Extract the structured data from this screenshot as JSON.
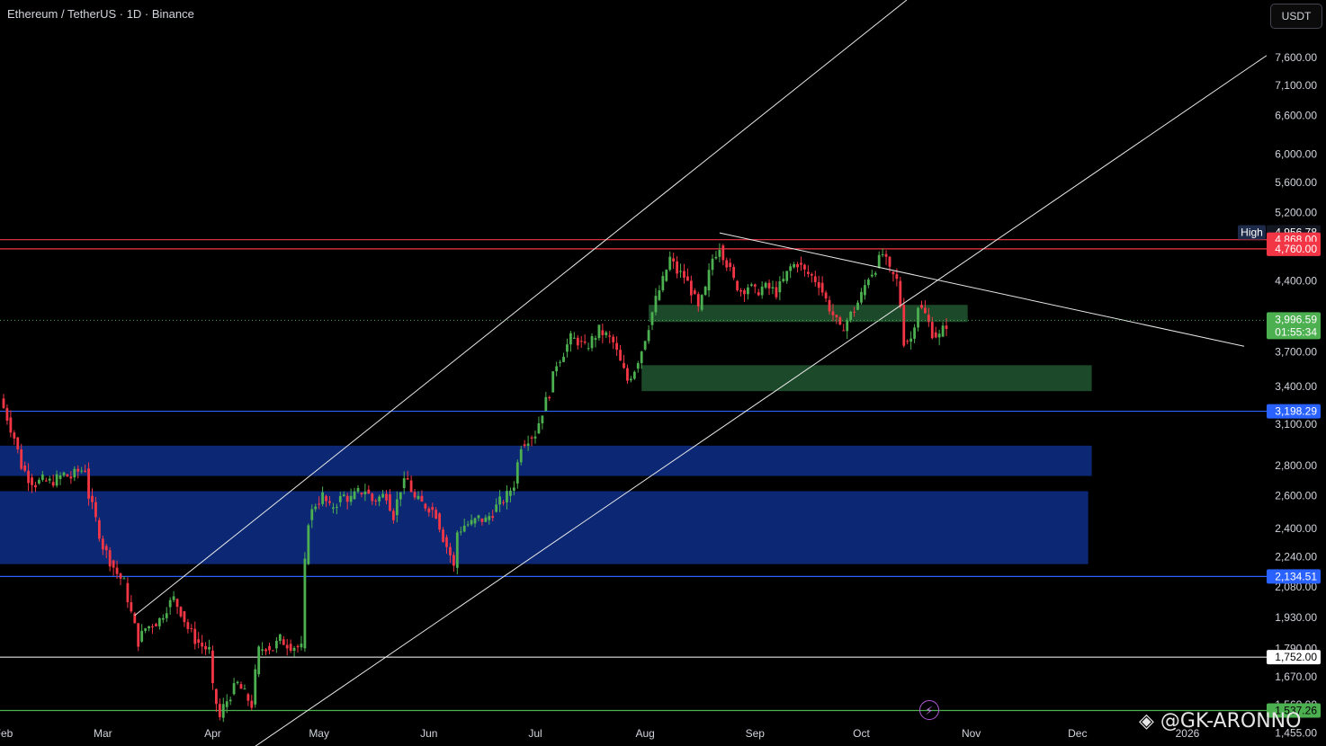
{
  "header": {
    "title": "Ethereum / TetherUS · 1D · Binance",
    "currency_button": "USDT"
  },
  "watermark": "@GK-ARONNO",
  "colors": {
    "up": "#4caf50",
    "down": "#f23645",
    "resistance": "#f23645",
    "support_blue": "#2962ff",
    "zone_green": "#1e4d2b",
    "zone_blue": "#0d2a7a",
    "trendline": "#e8e8e8"
  },
  "chart_data": {
    "type": "candlestick",
    "scale": "log",
    "y_ticks": [
      7600,
      7100,
      6600,
      6000,
      5600,
      5200,
      4400,
      3700,
      3400,
      3100,
      2800,
      2600,
      2400,
      2240,
      2080,
      1930,
      1790,
      1670,
      1560,
      1455
    ],
    "x_ticks": [
      "Feb",
      "Mar",
      "Apr",
      "May",
      "Jun",
      "Jul",
      "Aug",
      "Sep",
      "Oct",
      "Nov",
      "Dec",
      "2026"
    ],
    "x_tick_days": [
      0,
      28,
      59,
      89,
      120,
      150,
      181,
      212,
      242,
      273,
      303,
      334
    ],
    "price_tags": [
      {
        "label": "High",
        "value": "4,956.78",
        "price": 4956.78,
        "style": "high"
      },
      {
        "value": "4,868.00",
        "price": 4868,
        "style": "red"
      },
      {
        "value": "4,760.00",
        "price": 4760,
        "style": "red"
      },
      {
        "value": "3,996.59",
        "sub": "01:55:34",
        "price": 3996.59,
        "style": "last"
      },
      {
        "value": "3,198.29",
        "price": 3198.29,
        "style": "blue"
      },
      {
        "value": "2,134.51",
        "price": 2134.51,
        "style": "blue"
      },
      {
        "value": "1,752.00",
        "price": 1752,
        "style": "white"
      },
      {
        "value": "1,537.26",
        "price": 1537.26,
        "style": "green"
      }
    ],
    "horizontal_lines": [
      {
        "price": 4868,
        "color": "red"
      },
      {
        "price": 4760,
        "color": "red"
      },
      {
        "price": 3198.29,
        "color": "blue"
      },
      {
        "price": 2134.51,
        "color": "blue"
      },
      {
        "price": 1752,
        "color": "white"
      },
      {
        "price": 1537.26,
        "color": "green"
      }
    ],
    "zones": [
      {
        "color": "green",
        "day_start": 182,
        "day_end": 272,
        "price_low": 3980,
        "price_high": 4150
      },
      {
        "color": "green",
        "day_start": 180,
        "day_end": 307,
        "price_low": 3360,
        "price_high": 3580
      },
      {
        "color": "blue",
        "day_start": -2,
        "day_end": 307,
        "price_low": 2730,
        "price_high": 2940
      },
      {
        "color": "blue",
        "day_start": -2,
        "day_end": 306,
        "price_low": 2200,
        "price_high": 2630
      }
    ],
    "trendlines": [
      {
        "d1": 37,
        "p1": 1940,
        "d2": 89,
        "p2": 2780,
        "extend": true
      },
      {
        "d1": 70,
        "p1": 1400,
        "d2": 245,
        "p2": 3950,
        "extend": true
      },
      {
        "d1": 202,
        "p1": 4950,
        "d2": 350,
        "p2": 3750,
        "extend": false
      }
    ],
    "series_close": [
      [
        -1,
        3300
      ],
      [
        1,
        3150
      ],
      [
        3,
        3000
      ],
      [
        5,
        2800
      ],
      [
        7,
        2720
      ],
      [
        9,
        2680
      ],
      [
        11,
        2700
      ],
      [
        13,
        2690
      ],
      [
        15,
        2710
      ],
      [
        17,
        2740
      ],
      [
        19,
        2720
      ],
      [
        21,
        2760
      ],
      [
        23,
        2780
      ],
      [
        24,
        2600
      ],
      [
        26,
        2450
      ],
      [
        28,
        2300
      ],
      [
        30,
        2220
      ],
      [
        32,
        2150
      ],
      [
        34,
        2100
      ],
      [
        36,
        1950
      ],
      [
        38,
        1820
      ],
      [
        40,
        1880
      ],
      [
        42,
        1900
      ],
      [
        44,
        1920
      ],
      [
        46,
        1980
      ],
      [
        48,
        2020
      ],
      [
        50,
        1960
      ],
      [
        52,
        1880
      ],
      [
        54,
        1830
      ],
      [
        56,
        1800
      ],
      [
        58,
        1780
      ],
      [
        59,
        1620
      ],
      [
        61,
        1510
      ],
      [
        62,
        1550
      ],
      [
        64,
        1600
      ],
      [
        66,
        1640
      ],
      [
        68,
        1600
      ],
      [
        70,
        1560
      ],
      [
        71,
        1680
      ],
      [
        72,
        1780
      ],
      [
        74,
        1800
      ],
      [
        76,
        1790
      ],
      [
        78,
        1830
      ],
      [
        80,
        1810
      ],
      [
        82,
        1800
      ],
      [
        84,
        1790
      ],
      [
        85,
        2200
      ],
      [
        86,
        2450
      ],
      [
        88,
        2550
      ],
      [
        90,
        2600
      ],
      [
        92,
        2520
      ],
      [
        94,
        2560
      ],
      [
        96,
        2600
      ],
      [
        98,
        2580
      ],
      [
        100,
        2620
      ],
      [
        102,
        2640
      ],
      [
        104,
        2570
      ],
      [
        106,
        2590
      ],
      [
        108,
        2610
      ],
      [
        110,
        2480
      ],
      [
        112,
        2650
      ],
      [
        114,
        2700
      ],
      [
        116,
        2580
      ],
      [
        118,
        2550
      ],
      [
        120,
        2530
      ],
      [
        122,
        2490
      ],
      [
        124,
        2350
      ],
      [
        126,
        2250
      ],
      [
        127,
        2180
      ],
      [
        128,
        2380
      ],
      [
        130,
        2420
      ],
      [
        132,
        2430
      ],
      [
        134,
        2460
      ],
      [
        136,
        2450
      ],
      [
        138,
        2500
      ],
      [
        140,
        2560
      ],
      [
        142,
        2600
      ],
      [
        144,
        2680
      ],
      [
        146,
        2950
      ],
      [
        148,
        3000
      ],
      [
        150,
        3030
      ],
      [
        152,
        3200
      ],
      [
        154,
        3350
      ],
      [
        156,
        3600
      ],
      [
        158,
        3700
      ],
      [
        160,
        3820
      ],
      [
        162,
        3800
      ],
      [
        164,
        3730
      ],
      [
        166,
        3810
      ],
      [
        168,
        3900
      ],
      [
        170,
        3850
      ],
      [
        172,
        3780
      ],
      [
        174,
        3600
      ],
      [
        176,
        3450
      ],
      [
        178,
        3550
      ],
      [
        180,
        3720
      ],
      [
        182,
        3950
      ],
      [
        184,
        4200
      ],
      [
        186,
        4400
      ],
      [
        188,
        4650
      ],
      [
        190,
        4500
      ],
      [
        192,
        4450
      ],
      [
        194,
        4300
      ],
      [
        196,
        4100
      ],
      [
        198,
        4300
      ],
      [
        200,
        4650
      ],
      [
        202,
        4800
      ],
      [
        204,
        4600
      ],
      [
        206,
        4400
      ],
      [
        208,
        4300
      ],
      [
        210,
        4350
      ],
      [
        212,
        4280
      ],
      [
        214,
        4330
      ],
      [
        216,
        4320
      ],
      [
        218,
        4280
      ],
      [
        220,
        4400
      ],
      [
        222,
        4550
      ],
      [
        224,
        4600
      ],
      [
        226,
        4500
      ],
      [
        228,
        4450
      ],
      [
        230,
        4380
      ],
      [
        232,
        4200
      ],
      [
        234,
        4050
      ],
      [
        236,
        3900
      ],
      [
        238,
        4000
      ],
      [
        240,
        4100
      ],
      [
        242,
        4250
      ],
      [
        244,
        4450
      ],
      [
        246,
        4550
      ],
      [
        248,
        4700
      ],
      [
        250,
        4500
      ],
      [
        252,
        4400
      ],
      [
        253,
        4150
      ],
      [
        254,
        3800
      ],
      [
        256,
        3820
      ],
      [
        258,
        4150
      ],
      [
        260,
        4050
      ],
      [
        262,
        3880
      ],
      [
        264,
        3840
      ],
      [
        266,
        3960
      ]
    ]
  }
}
